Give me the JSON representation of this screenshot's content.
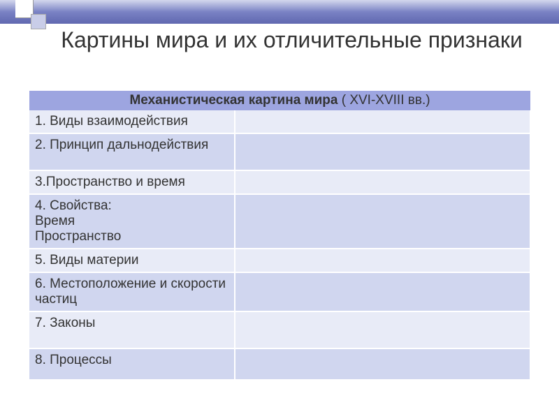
{
  "title": "Картины мира и их отличительные признаки",
  "table": {
    "header_bold": "Механистическая картина мира",
    "header_rest": " ( XVI-XVIII вв.)",
    "header_bg": "#9da5e0",
    "row_odd_bg": "#e8ebf7",
    "row_even_bg": "#d0d6ef",
    "rows": [
      {
        "left": "1. Виды взаимодействия",
        "right": "",
        "height": "normal"
      },
      {
        "left": "2. Принцип дальнодействия",
        "right": "",
        "height": "tall"
      },
      {
        "left": "3.Пространство  и время",
        "right": "",
        "height": "normal"
      },
      {
        "left": "4. Свойства:\n Время\n Пространство",
        "right": "",
        "height": "normal"
      },
      {
        "left": "5. Виды материи",
        "right": "",
        "height": "normal"
      },
      {
        "left": "6. Местоположение и скорости частиц",
        "right": "",
        "height": "normal"
      },
      {
        "left": "7. Законы",
        "right": "",
        "height": "tall"
      },
      {
        "left": "8. Процессы",
        "right": "",
        "height": "med"
      }
    ],
    "col_left_width": "41%",
    "col_right_width": "59%",
    "font_size": 19,
    "text_color": "#333333"
  },
  "decor": {
    "bar_gradient_top": "#d4d8ed",
    "bar_gradient_mid": "#7a82c4",
    "bar_gradient_bottom": "#6068b0",
    "square1_bg": "#ffffff",
    "square2_bg": "#c9cde8"
  }
}
